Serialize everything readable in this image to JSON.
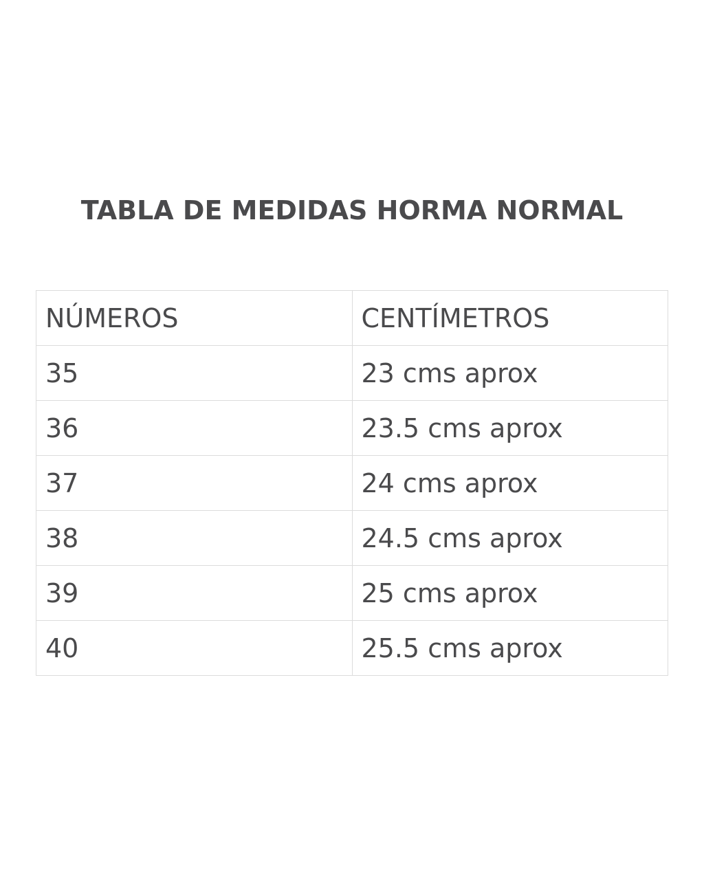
{
  "header": {
    "title": "TABLA DE MEDIDAS HORMA NORMAL"
  },
  "table": {
    "columns": [
      "NÚMEROS",
      "CENTÍMETROS"
    ],
    "rows": [
      [
        "35",
        "23 cms aprox"
      ],
      [
        "36",
        "23.5 cms aprox"
      ],
      [
        "37",
        "24 cms aprox"
      ],
      [
        "38",
        "24.5 cms aprox"
      ],
      [
        "39",
        "25 cms aprox"
      ],
      [
        "40",
        "25.5 cms aprox"
      ]
    ]
  }
}
